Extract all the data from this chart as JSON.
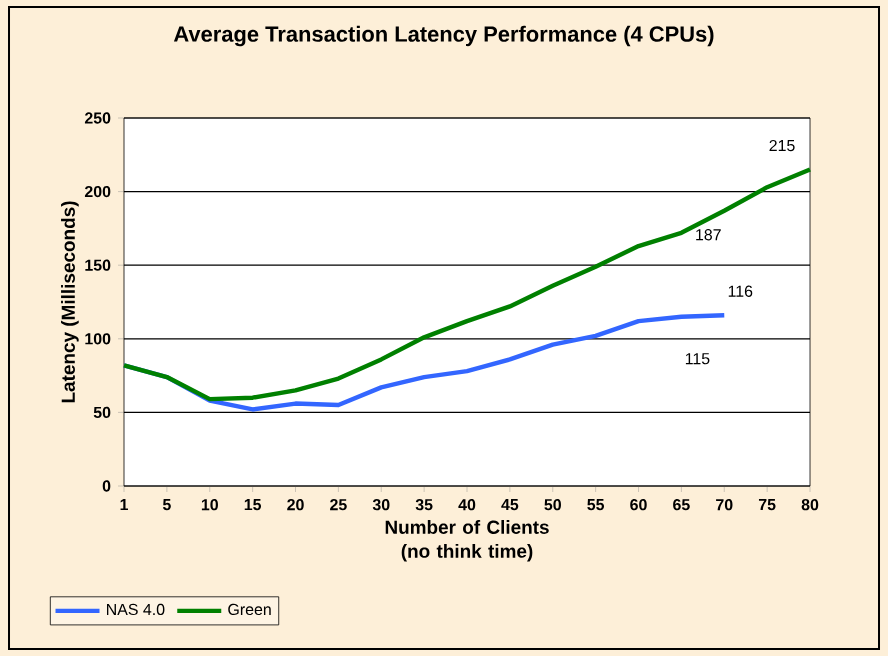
{
  "chart_data": {
    "type": "line",
    "title": "Average Transaction Latency Performance (4 CPUs)",
    "xlabel": "Number of Clients (no think time)",
    "ylabel": "Latency (Milliseconds)",
    "categories": [
      "1",
      "5",
      "10",
      "15",
      "20",
      "25",
      "30",
      "35",
      "40",
      "45",
      "50",
      "55",
      "60",
      "65",
      "70",
      "75",
      "80"
    ],
    "series": [
      {
        "name": "NAS 4.0",
        "color": "#3366ff",
        "values": [
          82,
          74,
          58,
          52,
          56,
          55,
          67,
          74,
          78,
          86,
          96,
          102,
          112,
          115,
          116,
          null,
          null
        ]
      },
      {
        "name": "Green",
        "color": "#008000",
        "values": [
          82,
          74,
          59,
          60,
          65,
          73,
          86,
          101,
          112,
          122,
          136,
          149,
          163,
          172,
          187,
          203,
          215
        ]
      }
    ],
    "ylim": [
      0,
      250
    ],
    "yticks": [
      0,
      50,
      100,
      150,
      200,
      250
    ],
    "grid": "y",
    "legend": "bottom left",
    "marker": "none",
    "line_style": "solid",
    "annotations": [
      {
        "text": "215",
        "x": "80",
        "y": 215
      },
      {
        "text": "187",
        "x": "70",
        "y": 187
      },
      {
        "text": "116",
        "x": "70",
        "y": 116
      },
      {
        "text": "115",
        "x": "65",
        "y": 115
      }
    ]
  }
}
